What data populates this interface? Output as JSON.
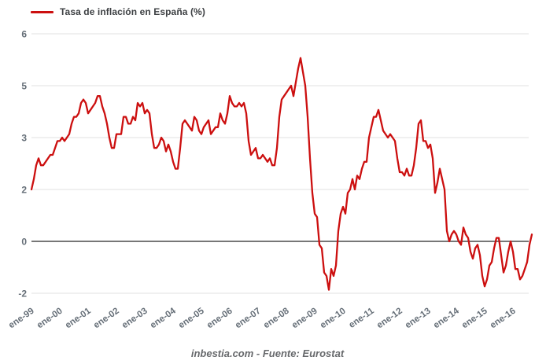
{
  "legend": {
    "label": "Tasa de inflación en España (%)"
  },
  "footer": {
    "text": "inbestia.com - Fuente: Eurostat"
  },
  "colors": {
    "series_red": "#cc0f0f",
    "gridline": "#e2e2e2",
    "zero_line": "#4a4a4a",
    "axis_label": "#666f78",
    "legend_text": "#3d4043",
    "footer_text": "#67696c",
    "background": "#ffffff"
  },
  "chart_data": {
    "type": "line",
    "title": "Tasa de inflación en España (%)",
    "xlabel": "",
    "ylabel": "",
    "legend_position": "top-left",
    "grid": true,
    "zero_line_emphasized": true,
    "frequency": "monthly",
    "x_start_label": "ene-99",
    "x_tick_labels": [
      "ene-99",
      "ene-00",
      "ene-01",
      "ene-02",
      "ene-03",
      "ene-04",
      "ene-05",
      "ene-06",
      "ene-07",
      "ene-08",
      "ene-09",
      "ene-10",
      "ene-11",
      "ene-12",
      "ene-13",
      "ene-14",
      "ene-15",
      "ene-16"
    ],
    "y_tick_display_labels": [
      "6",
      "5",
      "3",
      "2",
      "0",
      "-2"
    ],
    "y_tick_values": [
      6,
      4.5,
      3,
      1.5,
      0,
      -1.5
    ],
    "ylim": [
      -2.1,
      6.1
    ],
    "values": [
      1.5,
      1.8,
      2.2,
      2.4,
      2.2,
      2.2,
      2.3,
      2.4,
      2.5,
      2.5,
      2.7,
      2.9,
      2.9,
      3.0,
      2.9,
      3.0,
      3.1,
      3.4,
      3.6,
      3.6,
      3.7,
      4.0,
      4.1,
      4.0,
      3.7,
      3.8,
      3.9,
      4.0,
      4.2,
      4.2,
      3.9,
      3.7,
      3.4,
      3.0,
      2.7,
      2.7,
      3.1,
      3.1,
      3.1,
      3.6,
      3.6,
      3.4,
      3.4,
      3.6,
      3.5,
      4.0,
      3.9,
      4.0,
      3.7,
      3.8,
      3.7,
      3.1,
      2.7,
      2.7,
      2.8,
      3.0,
      2.9,
      2.6,
      2.8,
      2.6,
      2.3,
      2.1,
      2.1,
      2.7,
      3.4,
      3.5,
      3.4,
      3.3,
      3.2,
      3.6,
      3.5,
      3.2,
      3.1,
      3.3,
      3.4,
      3.5,
      3.1,
      3.2,
      3.3,
      3.3,
      3.7,
      3.5,
      3.4,
      3.7,
      4.2,
      4.0,
      3.9,
      3.9,
      4.0,
      3.9,
      4.0,
      3.7,
      2.9,
      2.5,
      2.6,
      2.7,
      2.4,
      2.4,
      2.5,
      2.4,
      2.3,
      2.4,
      2.2,
      2.2,
      2.7,
      3.6,
      4.1,
      4.2,
      4.3,
      4.4,
      4.5,
      4.2,
      4.6,
      5.0,
      5.3,
      4.9,
      4.5,
      3.6,
      2.4,
      1.4,
      0.8,
      0.7,
      -0.1,
      -0.2,
      -0.9,
      -1.0,
      -1.4,
      -0.8,
      -1.0,
      -0.7,
      0.3,
      0.8,
      1.0,
      0.8,
      1.4,
      1.5,
      1.8,
      1.5,
      1.9,
      1.8,
      2.1,
      2.3,
      2.3,
      3.0,
      3.3,
      3.6,
      3.6,
      3.8,
      3.5,
      3.2,
      3.1,
      3.0,
      3.1,
      3.0,
      2.9,
      2.4,
      2.0,
      2.0,
      1.9,
      2.1,
      1.9,
      1.9,
      2.2,
      2.7,
      3.4,
      3.5,
      2.9,
      2.9,
      2.7,
      2.8,
      2.4,
      1.4,
      1.7,
      2.1,
      1.8,
      1.5,
      0.3,
      0.0,
      0.2,
      0.3,
      0.2,
      0.0,
      -0.1,
      0.4,
      0.2,
      0.1,
      -0.3,
      -0.5,
      -0.2,
      -0.1,
      -0.4,
      -1.0,
      -1.3,
      -1.1,
      -0.7,
      -0.6,
      -0.2,
      0.1,
      0.1,
      -0.4,
      -0.9,
      -0.7,
      -0.3,
      0.0,
      -0.3,
      -0.8,
      -0.8,
      -1.1,
      -1.0,
      -0.8,
      -0.6,
      -0.1,
      0.2
    ]
  }
}
